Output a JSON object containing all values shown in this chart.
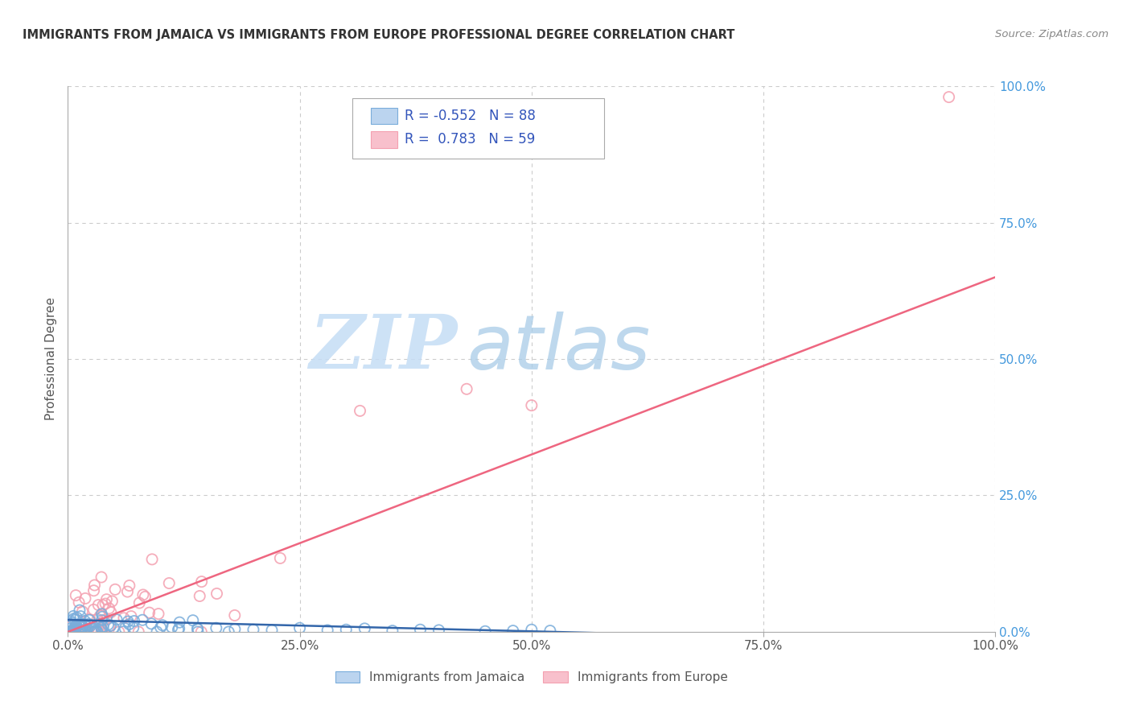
{
  "title": "IMMIGRANTS FROM JAMAICA VS IMMIGRANTS FROM EUROPE PROFESSIONAL DEGREE CORRELATION CHART",
  "source": "Source: ZipAtlas.com",
  "ylabel": "Professional Degree",
  "xlim": [
    0,
    1.0
  ],
  "ylim": [
    0,
    1.0
  ],
  "xtick_vals": [
    0.0,
    0.25,
    0.5,
    0.75,
    1.0
  ],
  "xtick_labels": [
    "0.0%",
    "25.0%",
    "50.0%",
    "75.0%",
    "100.0%"
  ],
  "ytick_vals": [
    0.0,
    0.25,
    0.5,
    0.75,
    1.0
  ],
  "ytick_labels_right": [
    "0.0%",
    "25.0%",
    "50.0%",
    "75.0%",
    "100.0%"
  ],
  "jamaica_color": "#7aaddb",
  "europe_color": "#f4a0b0",
  "jamaica_line_color": "#3366aa",
  "europe_line_color": "#ee6680",
  "jamaica_R": -0.552,
  "jamaica_N": 88,
  "europe_R": 0.783,
  "europe_N": 59,
  "legend_label_jamaica": "Immigrants from Jamaica",
  "legend_label_europe": "Immigrants from Europe",
  "watermark_zip": "ZIP",
  "watermark_atlas": "atlas",
  "background_color": "#ffffff",
  "grid_color": "#cccccc",
  "right_tick_color": "#4499dd",
  "title_color": "#333333",
  "source_color": "#888888",
  "ylabel_color": "#555555"
}
